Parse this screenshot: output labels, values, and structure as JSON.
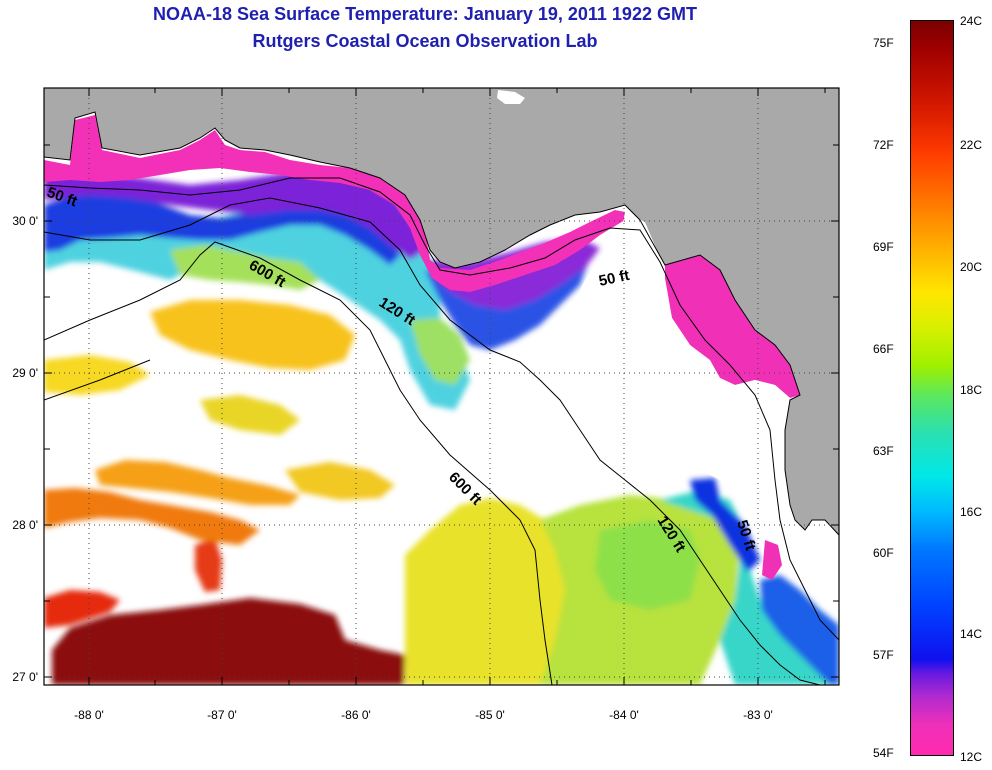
{
  "title": {
    "line1": "NOAA-18 Sea Surface Temperature:  January 19, 2011 1922 GMT",
    "line2": "Rutgers Coastal Ocean Observation Lab"
  },
  "map": {
    "lon_ticks": [
      "-88 0'",
      "-87 0'",
      "-86 0'",
      "-85 0'",
      "-84 0'",
      "-83 0'"
    ],
    "lat_ticks": [
      "30 0'",
      "29 0'",
      "28 0'",
      "27 0'"
    ],
    "contours": {
      "c50_west": "50 ft",
      "c600_north": "600 ft",
      "c120_big_bend": "120 ft",
      "c50_east": "50 ft",
      "c600_south": "600 ft",
      "c120_south": "120 ft",
      "c50_south": "50 ft"
    }
  },
  "colorbar": {
    "fahrenheit": [
      "75F",
      "72F",
      "69F",
      "66F",
      "63F",
      "60F",
      "57F",
      "54F"
    ],
    "celsius": [
      "24C",
      "22C",
      "20C",
      "18C",
      "16C",
      "14C",
      "12C"
    ]
  },
  "colors": {
    "title": "#1f1fb0",
    "land": "#a9a9a9",
    "cloud": "#ffffff"
  }
}
